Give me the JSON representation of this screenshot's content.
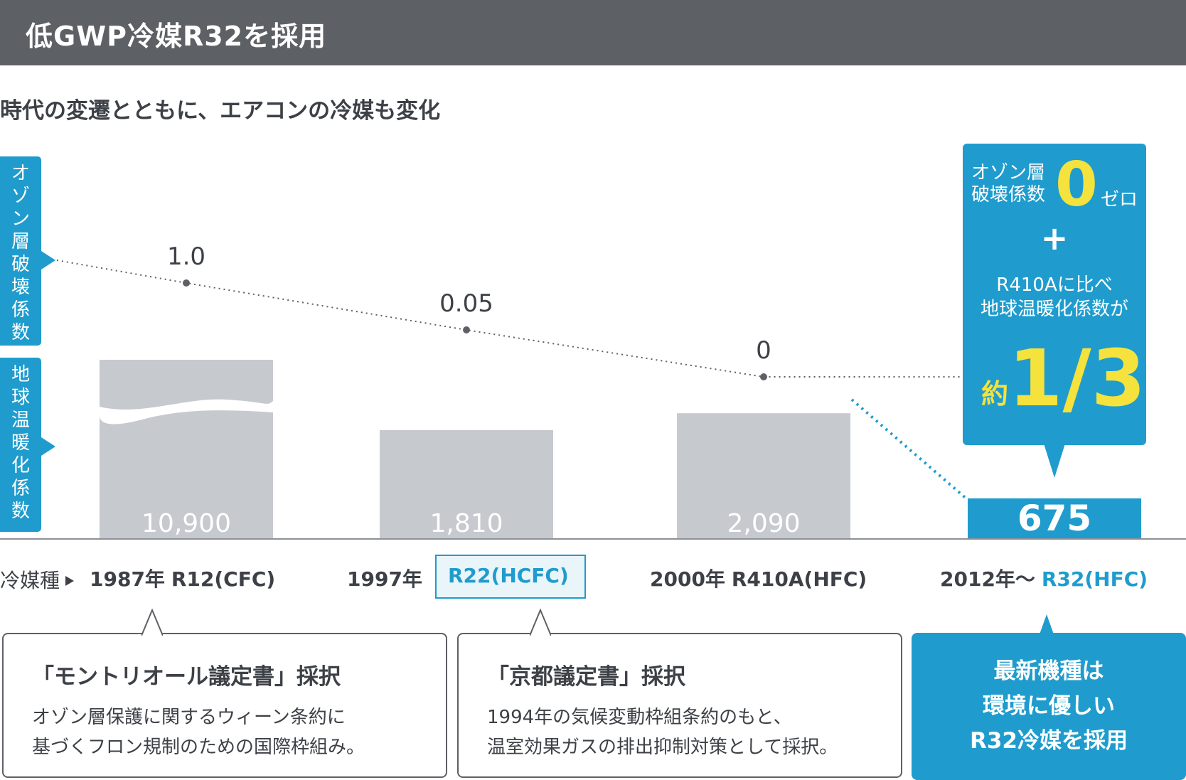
{
  "header": {
    "title": "低GWP冷媒R32を採用"
  },
  "subtitle": "時代の変遷とともに、エアコンの冷媒も変化",
  "labels": {
    "odp": "オゾン層破壊係数",
    "gwp": "地球温暖化係数",
    "refrigerant": "冷媒種"
  },
  "highlight": {
    "ozone_text_1": "オゾン層",
    "ozone_text_2": "破壊係数",
    "zero_value": "0",
    "zero_word": "ゼロ",
    "plus": "+",
    "compare_1": "R410Aに比べ",
    "compare_2": "地球温暖化係数が",
    "approx": "約",
    "ratio": "1/3"
  },
  "colors": {
    "accent": "#1f9ccd",
    "highlight_yellow": "#f5e23c",
    "bar_gray": "#c6c9ce",
    "header_bg": "#5d6064",
    "text": "#3d4147"
  },
  "chart_data": {
    "type": "bar",
    "categories": [
      "1987年 R12(CFC)",
      "1997年 R22(HCFC)",
      "2000年 R410A(HFC)",
      "2012年〜 R32(HFC)"
    ],
    "series": [
      {
        "name": "地球温暖化係数",
        "values": [
          10900,
          1810,
          2090,
          675
        ],
        "labels": [
          "10,900",
          "1,810",
          "2,090",
          "675"
        ]
      },
      {
        "name": "オゾン層破壊係数",
        "values": [
          1.0,
          0.05,
          0,
          0
        ],
        "labels": [
          "1.0",
          "0.05",
          "0",
          ""
        ]
      }
    ],
    "axis_broken_first_bar": true,
    "grid": false
  },
  "eras": [
    {
      "year": "1987年",
      "refrigerant": "R12(CFC)"
    },
    {
      "year": "1997年",
      "refrigerant": "R22(HCFC)"
    },
    {
      "year": "2000年",
      "refrigerant": "R410A(HFC)"
    },
    {
      "year": "2012年〜",
      "refrigerant": "R32(HFC)"
    }
  ],
  "notes": [
    {
      "title": "「モントリオール議定書」採択",
      "text_1": "オゾン層保護に関するウィーン条約に",
      "text_2": "基づくフロン規制のための国際枠組み。"
    },
    {
      "title": "「京都議定書」採択",
      "text_1": "1994年の気候変動枠組条約のもと、",
      "text_2": "温室効果ガスの排出抑制対策として採択。"
    }
  ],
  "feature": {
    "line_1": "最新機種は",
    "line_2": "環境に優しい",
    "line_3": "R32冷媒を採用"
  }
}
